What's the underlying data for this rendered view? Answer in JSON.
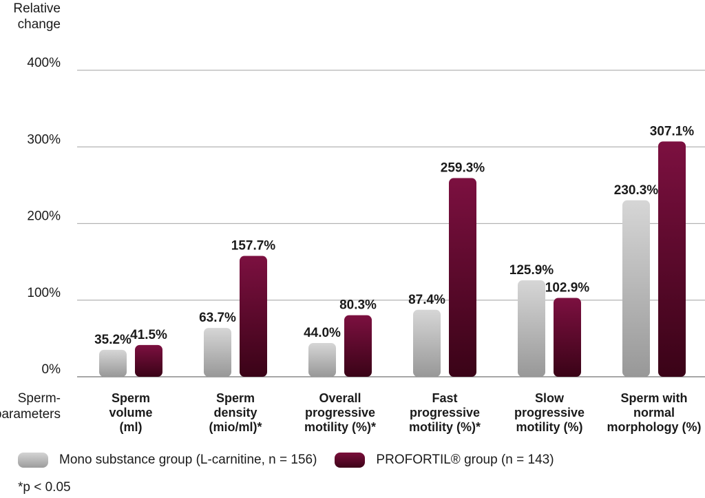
{
  "chart_data": {
    "type": "bar",
    "ylabel": [
      "Relative",
      "change"
    ],
    "xlabel": [
      "Sperm-",
      "parameters"
    ],
    "ylim": [
      0,
      400
    ],
    "yticks": [
      "0%",
      "100%",
      "200%",
      "300%",
      "400%"
    ],
    "grid": true,
    "categories": [
      [
        "Sperm",
        "volume",
        "(ml)"
      ],
      [
        "Sperm",
        "density",
        "(mio/ml)*"
      ],
      [
        "Overall",
        "progressive",
        "motility (%)*"
      ],
      [
        "Fast",
        "progressive",
        "motility (%)*"
      ],
      [
        "Slow",
        "progressive",
        "motility (%)"
      ],
      [
        "Sperm with",
        "normal",
        "morphology (%)"
      ]
    ],
    "series": [
      {
        "name": "Mono substance group (L-carnitine, n = 156)",
        "color": "#b5b5b5",
        "values": [
          35.2,
          63.7,
          44.0,
          87.4,
          125.9,
          230.3
        ],
        "labels": [
          "35.2%",
          "63.7%",
          "44.0%",
          "87.4%",
          "125.9%",
          "230.3%"
        ]
      },
      {
        "name": "PROFORTIL® group (n = 143)",
        "color": "#6a0a33",
        "values": [
          41.5,
          157.7,
          80.3,
          259.3,
          102.9,
          307.1
        ],
        "labels": [
          "41.5%",
          "157.7%",
          "80.3%",
          "259.3%",
          "102.9%",
          "307.1%"
        ]
      }
    ],
    "legend_position": "bottom-left"
  },
  "legend": {
    "mono": "Mono substance group (L-carnitine, n = 156)",
    "pro": "PROFORTIL® group (n = 143)"
  },
  "footnote": "*p < 0.05"
}
